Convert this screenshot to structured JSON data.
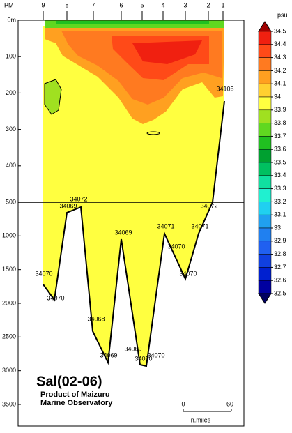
{
  "chart_data": {
    "type": "contour",
    "title": "Sal(02-06)",
    "subtitle": [
      "Product of Maizuru",
      "Marine Observatory"
    ],
    "x_prefix": "PM",
    "stations": [
      "9",
      "8",
      "7",
      "6",
      "5",
      "4",
      "3",
      "2",
      "1"
    ],
    "ylim": [
      0,
      3500
    ],
    "ybreak": 500,
    "yticks": [
      {
        "value": 0,
        "label": "0m"
      },
      100,
      200,
      300,
      400,
      500,
      1000,
      1500,
      2000,
      2500,
      3000,
      3500
    ],
    "annotations": [
      "34105",
      "34072",
      "34069",
      "34072",
      "34069",
      "34071",
      "34071",
      "34070",
      "34070",
      "34070",
      "34070",
      "34068",
      "34069",
      "34069",
      "34070",
      "34070"
    ],
    "scale": {
      "ticks": [
        "0",
        "60"
      ],
      "unit": "n.miles"
    },
    "colorbar": {
      "unit": "psu",
      "levels": [
        34.5,
        34.4,
        34.3,
        34.2,
        34.1,
        34.0,
        33.9,
        33.8,
        33.7,
        33.6,
        33.5,
        33.4,
        33.3,
        33.2,
        33.1,
        33.0,
        32.9,
        32.8,
        32.7,
        32.6,
        32.5
      ],
      "colors": [
        "#a00000",
        "#f02010",
        "#ff4a18",
        "#ff7a20",
        "#ffa020",
        "#ffd030",
        "#ffff40",
        "#a0e020",
        "#60d820",
        "#20c020",
        "#00a030",
        "#00c060",
        "#10e0a0",
        "#20f0d0",
        "#20d0f0",
        "#20a0f0",
        "#2080f0",
        "#2060f0",
        "#1040e0",
        "#0020d0",
        "#0000a0",
        "#000060"
      ]
    }
  }
}
